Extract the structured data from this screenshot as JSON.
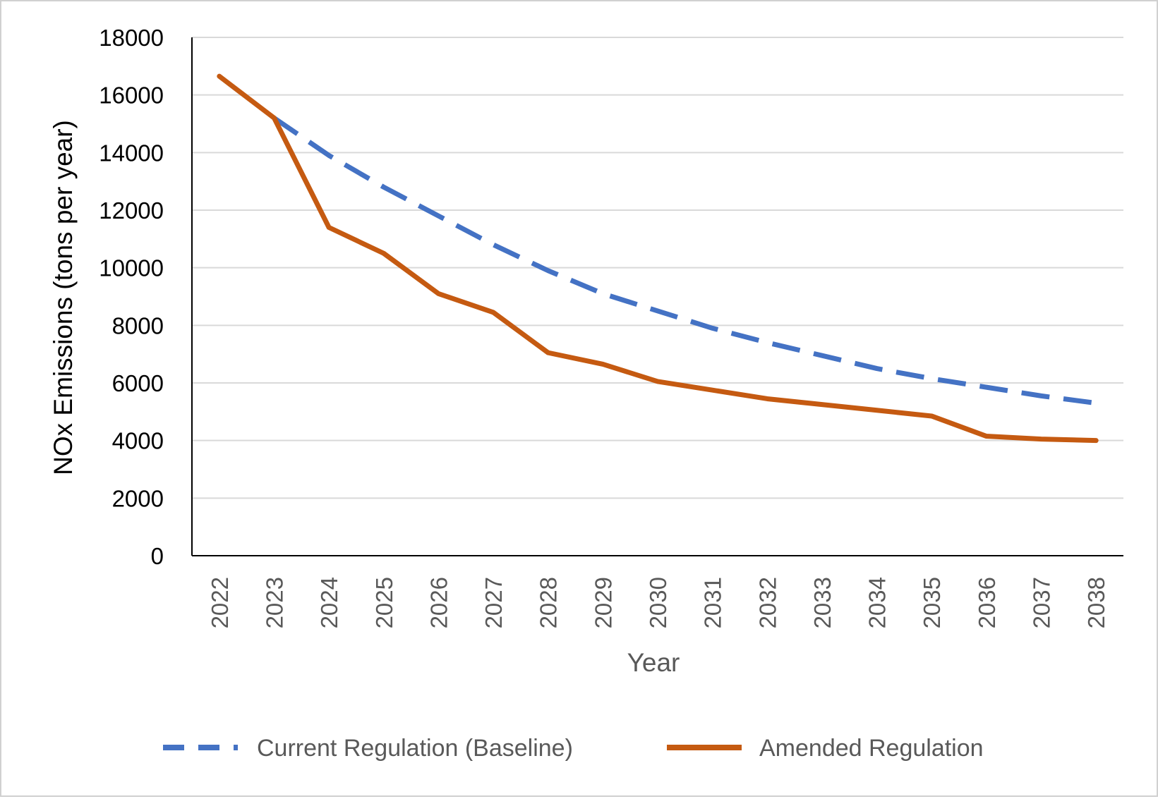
{
  "chart_data": {
    "type": "line",
    "title": "",
    "xlabel": "Year",
    "ylabel": "NOx Emissions (tons per year)",
    "ylim": [
      0,
      18000
    ],
    "yticks": [
      "0",
      "2000",
      "4000",
      "6000",
      "8000",
      "10000",
      "12000",
      "14000",
      "16000",
      "18000"
    ],
    "categories": [
      "2022",
      "2023",
      "2024",
      "2025",
      "2026",
      "2027",
      "2028",
      "2029",
      "2030",
      "2031",
      "2032",
      "2033",
      "2034",
      "2035",
      "2036",
      "2037",
      "2038"
    ],
    "grid": true,
    "legend_position": "bottom",
    "series": [
      {
        "name": "Current Regulation (Baseline)",
        "style": "dashed",
        "color": "#4472C4",
        "values": [
          16650,
          15200,
          13900,
          12800,
          11800,
          10800,
          9900,
          9100,
          8500,
          7900,
          7400,
          6950,
          6500,
          6150,
          5850,
          5550,
          5300
        ]
      },
      {
        "name": "Amended Regulation",
        "style": "solid",
        "color": "#C55A11",
        "values": [
          16650,
          15200,
          11400,
          10500,
          9100,
          8450,
          7050,
          6650,
          6050,
          5750,
          5450,
          5250,
          5050,
          4850,
          4150,
          4050,
          4000
        ]
      }
    ]
  }
}
